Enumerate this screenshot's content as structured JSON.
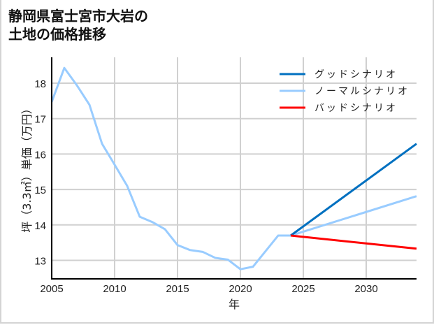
{
  "title": "静岡県富士宮市大岩の\n土地の価格推移",
  "chart_data": {
    "type": "line",
    "title": "静岡県富士宮市大岩の土地の価格推移",
    "xlabel": "年",
    "ylabel": "坪（3.3㎡）単価（万円）",
    "xlim": [
      2005,
      2034
    ],
    "ylim": [
      12.5,
      18.7
    ],
    "xticks": [
      2005,
      2010,
      2015,
      2020,
      2025,
      2030
    ],
    "yticks": [
      13,
      14,
      15,
      16,
      17,
      18
    ],
    "grid": true,
    "legend_position": "upper right",
    "series": [
      {
        "name": "グッドシナリオ",
        "color": "#0070c0",
        "x": [
          2024,
          2034
        ],
        "values": [
          13.7,
          16.29
        ]
      },
      {
        "name": "ノーマルシナリオ",
        "color": "#99ccff",
        "x": [
          2005,
          2006,
          2007,
          2008,
          2009,
          2010,
          2011,
          2012,
          2013,
          2014,
          2015,
          2016,
          2017,
          2018,
          2019,
          2020,
          2021,
          2022,
          2023,
          2024,
          2034
        ],
        "values": [
          17.47,
          18.43,
          17.94,
          17.39,
          16.29,
          15.7,
          15.1,
          14.23,
          14.08,
          13.88,
          13.43,
          13.29,
          13.24,
          13.07,
          13.02,
          12.75,
          12.82,
          13.26,
          13.7,
          13.7,
          14.81
        ]
      },
      {
        "name": "バッドシナリオ",
        "color": "#ff0000",
        "x": [
          2024,
          2034
        ],
        "values": [
          13.7,
          13.33
        ]
      }
    ]
  }
}
